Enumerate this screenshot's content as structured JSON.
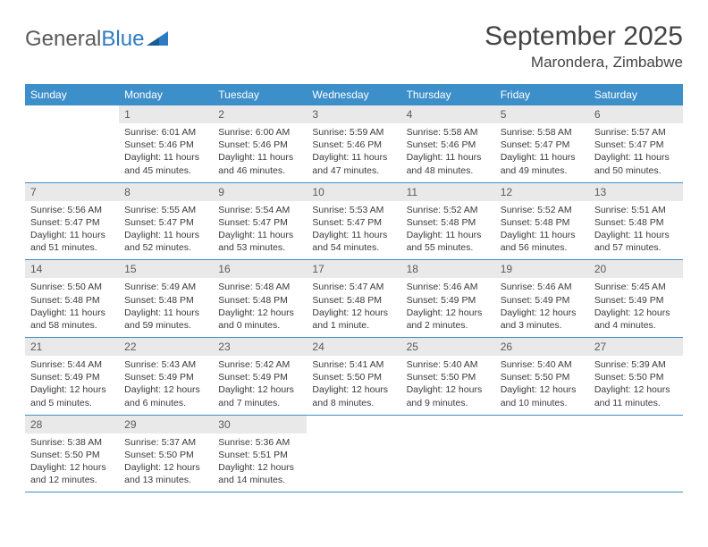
{
  "brand": {
    "part1": "General",
    "part2": "Blue"
  },
  "title": "September 2025",
  "location": "Marondera, Zimbabwe",
  "colors": {
    "header_bg": "#3d8fc9",
    "header_text": "#ffffff",
    "daynum_bg": "#e9e9e9",
    "daynum_text": "#5a5a5a",
    "border": "#3d8fc9",
    "body_text": "#3a3a3a",
    "logo_gray": "#5a5a5a",
    "logo_blue": "#2d7bc0"
  },
  "weekdays": [
    "Sunday",
    "Monday",
    "Tuesday",
    "Wednesday",
    "Thursday",
    "Friday",
    "Saturday"
  ],
  "weeks": [
    [
      {
        "n": "",
        "lines": [
          "",
          "",
          "",
          ""
        ]
      },
      {
        "n": "1",
        "lines": [
          "Sunrise: 6:01 AM",
          "Sunset: 5:46 PM",
          "Daylight: 11 hours",
          "and 45 minutes."
        ]
      },
      {
        "n": "2",
        "lines": [
          "Sunrise: 6:00 AM",
          "Sunset: 5:46 PM",
          "Daylight: 11 hours",
          "and 46 minutes."
        ]
      },
      {
        "n": "3",
        "lines": [
          "Sunrise: 5:59 AM",
          "Sunset: 5:46 PM",
          "Daylight: 11 hours",
          "and 47 minutes."
        ]
      },
      {
        "n": "4",
        "lines": [
          "Sunrise: 5:58 AM",
          "Sunset: 5:46 PM",
          "Daylight: 11 hours",
          "and 48 minutes."
        ]
      },
      {
        "n": "5",
        "lines": [
          "Sunrise: 5:58 AM",
          "Sunset: 5:47 PM",
          "Daylight: 11 hours",
          "and 49 minutes."
        ]
      },
      {
        "n": "6",
        "lines": [
          "Sunrise: 5:57 AM",
          "Sunset: 5:47 PM",
          "Daylight: 11 hours",
          "and 50 minutes."
        ]
      }
    ],
    [
      {
        "n": "7",
        "lines": [
          "Sunrise: 5:56 AM",
          "Sunset: 5:47 PM",
          "Daylight: 11 hours",
          "and 51 minutes."
        ]
      },
      {
        "n": "8",
        "lines": [
          "Sunrise: 5:55 AM",
          "Sunset: 5:47 PM",
          "Daylight: 11 hours",
          "and 52 minutes."
        ]
      },
      {
        "n": "9",
        "lines": [
          "Sunrise: 5:54 AM",
          "Sunset: 5:47 PM",
          "Daylight: 11 hours",
          "and 53 minutes."
        ]
      },
      {
        "n": "10",
        "lines": [
          "Sunrise: 5:53 AM",
          "Sunset: 5:47 PM",
          "Daylight: 11 hours",
          "and 54 minutes."
        ]
      },
      {
        "n": "11",
        "lines": [
          "Sunrise: 5:52 AM",
          "Sunset: 5:48 PM",
          "Daylight: 11 hours",
          "and 55 minutes."
        ]
      },
      {
        "n": "12",
        "lines": [
          "Sunrise: 5:52 AM",
          "Sunset: 5:48 PM",
          "Daylight: 11 hours",
          "and 56 minutes."
        ]
      },
      {
        "n": "13",
        "lines": [
          "Sunrise: 5:51 AM",
          "Sunset: 5:48 PM",
          "Daylight: 11 hours",
          "and 57 minutes."
        ]
      }
    ],
    [
      {
        "n": "14",
        "lines": [
          "Sunrise: 5:50 AM",
          "Sunset: 5:48 PM",
          "Daylight: 11 hours",
          "and 58 minutes."
        ]
      },
      {
        "n": "15",
        "lines": [
          "Sunrise: 5:49 AM",
          "Sunset: 5:48 PM",
          "Daylight: 11 hours",
          "and 59 minutes."
        ]
      },
      {
        "n": "16",
        "lines": [
          "Sunrise: 5:48 AM",
          "Sunset: 5:48 PM",
          "Daylight: 12 hours",
          "and 0 minutes."
        ]
      },
      {
        "n": "17",
        "lines": [
          "Sunrise: 5:47 AM",
          "Sunset: 5:48 PM",
          "Daylight: 12 hours",
          "and 1 minute."
        ]
      },
      {
        "n": "18",
        "lines": [
          "Sunrise: 5:46 AM",
          "Sunset: 5:49 PM",
          "Daylight: 12 hours",
          "and 2 minutes."
        ]
      },
      {
        "n": "19",
        "lines": [
          "Sunrise: 5:46 AM",
          "Sunset: 5:49 PM",
          "Daylight: 12 hours",
          "and 3 minutes."
        ]
      },
      {
        "n": "20",
        "lines": [
          "Sunrise: 5:45 AM",
          "Sunset: 5:49 PM",
          "Daylight: 12 hours",
          "and 4 minutes."
        ]
      }
    ],
    [
      {
        "n": "21",
        "lines": [
          "Sunrise: 5:44 AM",
          "Sunset: 5:49 PM",
          "Daylight: 12 hours",
          "and 5 minutes."
        ]
      },
      {
        "n": "22",
        "lines": [
          "Sunrise: 5:43 AM",
          "Sunset: 5:49 PM",
          "Daylight: 12 hours",
          "and 6 minutes."
        ]
      },
      {
        "n": "23",
        "lines": [
          "Sunrise: 5:42 AM",
          "Sunset: 5:49 PM",
          "Daylight: 12 hours",
          "and 7 minutes."
        ]
      },
      {
        "n": "24",
        "lines": [
          "Sunrise: 5:41 AM",
          "Sunset: 5:50 PM",
          "Daylight: 12 hours",
          "and 8 minutes."
        ]
      },
      {
        "n": "25",
        "lines": [
          "Sunrise: 5:40 AM",
          "Sunset: 5:50 PM",
          "Daylight: 12 hours",
          "and 9 minutes."
        ]
      },
      {
        "n": "26",
        "lines": [
          "Sunrise: 5:40 AM",
          "Sunset: 5:50 PM",
          "Daylight: 12 hours",
          "and 10 minutes."
        ]
      },
      {
        "n": "27",
        "lines": [
          "Sunrise: 5:39 AM",
          "Sunset: 5:50 PM",
          "Daylight: 12 hours",
          "and 11 minutes."
        ]
      }
    ],
    [
      {
        "n": "28",
        "lines": [
          "Sunrise: 5:38 AM",
          "Sunset: 5:50 PM",
          "Daylight: 12 hours",
          "and 12 minutes."
        ]
      },
      {
        "n": "29",
        "lines": [
          "Sunrise: 5:37 AM",
          "Sunset: 5:50 PM",
          "Daylight: 12 hours",
          "and 13 minutes."
        ]
      },
      {
        "n": "30",
        "lines": [
          "Sunrise: 5:36 AM",
          "Sunset: 5:51 PM",
          "Daylight: 12 hours",
          "and 14 minutes."
        ]
      },
      {
        "n": "",
        "lines": [
          "",
          "",
          "",
          ""
        ]
      },
      {
        "n": "",
        "lines": [
          "",
          "",
          "",
          ""
        ]
      },
      {
        "n": "",
        "lines": [
          "",
          "",
          "",
          ""
        ]
      },
      {
        "n": "",
        "lines": [
          "",
          "",
          "",
          ""
        ]
      }
    ]
  ]
}
